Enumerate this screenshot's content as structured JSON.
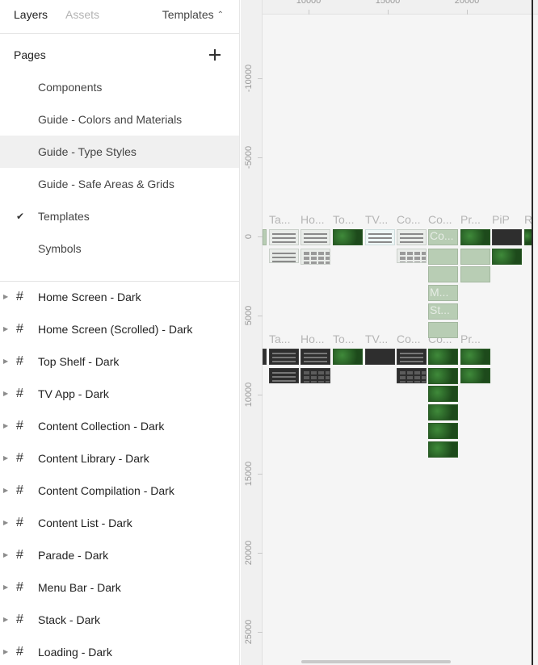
{
  "tabs": {
    "layers": "Layers",
    "assets": "Assets"
  },
  "page_switcher": {
    "label": "Templates",
    "chevron_icon": "chevron-up-icon"
  },
  "pages": {
    "header": "Pages",
    "add_icon": "plus-icon",
    "items": [
      {
        "label": "Components",
        "current": false,
        "hovered": false
      },
      {
        "label": "Guide - Colors and Materials",
        "current": false,
        "hovered": false
      },
      {
        "label": "Guide - Type Styles",
        "current": false,
        "hovered": true
      },
      {
        "label": "Guide - Safe Areas & Grids",
        "current": false,
        "hovered": false
      },
      {
        "label": "Templates",
        "current": true,
        "hovered": false
      },
      {
        "label": "Symbols",
        "current": false,
        "hovered": false
      }
    ]
  },
  "layers": {
    "frame_icon": "hash-frame-icon",
    "expand_icon": "caret-right-icon",
    "items": [
      {
        "label": "Home Screen - Dark"
      },
      {
        "label": "Home Screen (Scrolled) - Dark"
      },
      {
        "label": "Top Shelf - Dark"
      },
      {
        "label": "TV App - Dark"
      },
      {
        "label": "Content Collection - Dark"
      },
      {
        "label": "Content Library - Dark"
      },
      {
        "label": "Content Compilation - Dark"
      },
      {
        "label": "Content List - Dark"
      },
      {
        "label": "Parade - Dark"
      },
      {
        "label": "Menu Bar - Dark"
      },
      {
        "label": "Stack - Dark"
      },
      {
        "label": "Loading - Dark"
      }
    ]
  },
  "canvas": {
    "ruler_x_labels": [
      "10000",
      "15000",
      "20000"
    ],
    "ruler_y_labels": [
      "-10000",
      "-5000",
      "0",
      "5000",
      "10000",
      "15000",
      "20000",
      "25000"
    ],
    "frame_labels_row1": [
      "Ta...",
      "Ho...",
      "To...",
      "TV...",
      "Co...",
      "Co...",
      "Pr...",
      "PiP",
      "R"
    ],
    "frame_labels_row2": [
      "Ta...",
      "Ho...",
      "To...",
      "TV...",
      "Co...",
      "Co...",
      "Pr..."
    ],
    "column_overlay_labels": [
      "Co...",
      "M...",
      "St..."
    ]
  },
  "colors": {
    "accent_green": "#2f6e2b",
    "panel_background": "#ffffff",
    "canvas_background": "#f5f5f5",
    "hover_row": "#f0f0f0"
  }
}
